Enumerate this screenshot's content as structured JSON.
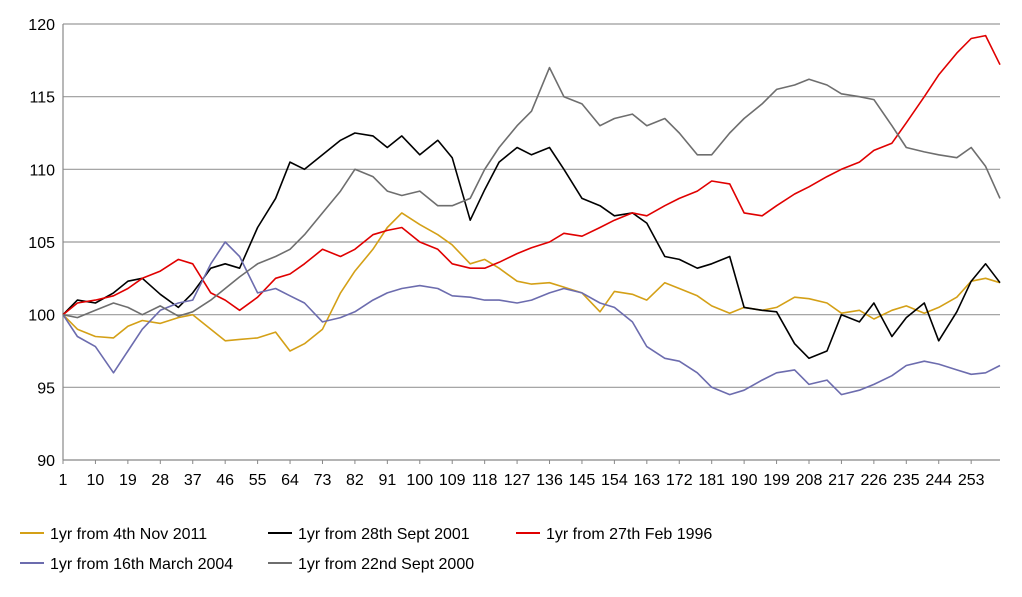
{
  "chart_data": {
    "type": "line",
    "title": "",
    "xlabel": "",
    "ylabel": "",
    "ylim": [
      90,
      120
    ],
    "xlim": [
      1,
      261
    ],
    "y_ticks": [
      "90",
      "95",
      "100",
      "105",
      "110",
      "115",
      "120"
    ],
    "x_ticks": [
      "1",
      "10",
      "19",
      "28",
      "37",
      "46",
      "55",
      "64",
      "73",
      "82",
      "91",
      "100",
      "109",
      "118",
      "127",
      "136",
      "145",
      "154",
      "163",
      "172",
      "181",
      "190",
      "199",
      "208",
      "217",
      "226",
      "235",
      "244",
      "253"
    ],
    "grid": "horizontal",
    "legend_position": "bottom",
    "series": [
      {
        "name": "1yr from 4th Nov 2011",
        "color": "#D4A017",
        "x": [
          1,
          5,
          10,
          15,
          19,
          23,
          28,
          33,
          37,
          42,
          46,
          50,
          55,
          60,
          64,
          68,
          73,
          78,
          82,
          87,
          91,
          95,
          100,
          105,
          109,
          114,
          118,
          122,
          127,
          131,
          136,
          140,
          145,
          150,
          154,
          159,
          163,
          168,
          172,
          177,
          181,
          186,
          190,
          195,
          199,
          204,
          208,
          213,
          217,
          222,
          226,
          231,
          235,
          240,
          244,
          249,
          253,
          257,
          261
        ],
        "y": [
          100,
          99,
          98.5,
          98.4,
          99.2,
          99.6,
          99.4,
          99.8,
          100,
          99,
          98.2,
          98.3,
          98.4,
          98.8,
          97.5,
          98,
          99,
          101.5,
          103,
          104.5,
          106,
          107,
          106.2,
          105.5,
          104.8,
          103.5,
          103.8,
          103.2,
          102.3,
          102.1,
          102.2,
          101.9,
          101.5,
          100.2,
          101.6,
          101.4,
          101,
          102.2,
          101.8,
          101.3,
          100.6,
          100.1,
          100.5,
          100.3,
          100.5,
          101.2,
          101.1,
          100.8,
          100.1,
          100.3,
          99.7,
          100.3,
          100.6,
          100.1,
          100.5,
          101.2,
          102.3,
          102.5,
          102.2
        ]
      },
      {
        "name": "1yr from 28th Sept 2001",
        "color": "#000000",
        "x": [
          1,
          5,
          10,
          15,
          19,
          23,
          28,
          33,
          37,
          42,
          46,
          50,
          55,
          60,
          64,
          68,
          73,
          78,
          82,
          87,
          91,
          95,
          100,
          105,
          109,
          114,
          118,
          122,
          127,
          131,
          136,
          140,
          145,
          150,
          154,
          159,
          163,
          168,
          172,
          177,
          181,
          186,
          190,
          195,
          199,
          204,
          208,
          213,
          217,
          222,
          226,
          231,
          235,
          240,
          244,
          249,
          253,
          257,
          261
        ],
        "y": [
          100,
          101,
          100.8,
          101.5,
          102.3,
          102.5,
          101.4,
          100.5,
          101.5,
          103.2,
          103.5,
          103.2,
          106,
          108,
          110.5,
          110,
          111,
          112,
          112.5,
          112.3,
          111.5,
          112.3,
          111,
          112,
          110.8,
          106.5,
          108.6,
          110.5,
          111.5,
          111,
          111.5,
          110,
          108,
          107.5,
          106.8,
          107,
          106.3,
          104,
          103.8,
          103.2,
          103.5,
          104,
          100.5,
          100.3,
          100.2,
          98,
          97,
          97.5,
          100,
          99.5,
          100.8,
          98.5,
          99.8,
          100.8,
          98.2,
          100.2,
          102.3,
          103.5,
          102.2
        ]
      },
      {
        "name": "1yr from 27th Feb 1996",
        "color": "#E00000",
        "x": [
          1,
          5,
          10,
          15,
          19,
          23,
          28,
          33,
          37,
          42,
          46,
          50,
          55,
          60,
          64,
          68,
          73,
          78,
          82,
          87,
          91,
          95,
          100,
          105,
          109,
          114,
          118,
          122,
          127,
          131,
          136,
          140,
          145,
          150,
          154,
          159,
          163,
          168,
          172,
          177,
          181,
          186,
          190,
          195,
          199,
          204,
          208,
          213,
          217,
          222,
          226,
          231,
          235,
          240,
          244,
          249,
          253,
          257,
          261
        ],
        "y": [
          100,
          100.8,
          101,
          101.3,
          101.8,
          102.5,
          103,
          103.8,
          103.5,
          101.5,
          101,
          100.3,
          101.2,
          102.5,
          102.8,
          103.5,
          104.5,
          104,
          104.5,
          105.5,
          105.8,
          106,
          105,
          104.5,
          103.5,
          103.2,
          103.2,
          103.6,
          104.2,
          104.6,
          105,
          105.6,
          105.4,
          106,
          106.5,
          107,
          106.8,
          107.5,
          108,
          108.5,
          109.2,
          109,
          107,
          106.8,
          107.5,
          108.3,
          108.8,
          109.5,
          110,
          110.5,
          111.3,
          111.8,
          113.2,
          115,
          116.5,
          118,
          119,
          119.2,
          117.2
        ]
      },
      {
        "name": "1yr from 16th March 2004",
        "color": "#6C6CAE",
        "x": [
          1,
          5,
          10,
          15,
          19,
          23,
          28,
          33,
          37,
          42,
          46,
          50,
          55,
          60,
          64,
          68,
          73,
          78,
          82,
          87,
          91,
          95,
          100,
          105,
          109,
          114,
          118,
          122,
          127,
          131,
          136,
          140,
          145,
          150,
          154,
          159,
          163,
          168,
          172,
          177,
          181,
          186,
          190,
          195,
          199,
          204,
          208,
          213,
          217,
          222,
          226,
          231,
          235,
          240,
          244,
          249,
          253,
          257,
          261
        ],
        "y": [
          100,
          98.5,
          97.8,
          96,
          97.5,
          99,
          100.3,
          100.8,
          101,
          103.5,
          105,
          104,
          101.5,
          101.8,
          101.3,
          100.8,
          99.5,
          99.8,
          100.2,
          101,
          101.5,
          101.8,
          102,
          101.8,
          101.3,
          101.2,
          101,
          101,
          100.8,
          101,
          101.5,
          101.8,
          101.5,
          100.8,
          100.5,
          99.5,
          97.8,
          97,
          96.8,
          96,
          95,
          94.5,
          94.8,
          95.5,
          96,
          96.2,
          95.2,
          95.5,
          94.5,
          94.8,
          95.2,
          95.8,
          96.5,
          96.8,
          96.6,
          96.2,
          95.9,
          96,
          96.5
        ]
      },
      {
        "name": "1yr from 22nd Sept 2000",
        "color": "#6E6E6E",
        "x": [
          1,
          5,
          10,
          15,
          19,
          23,
          28,
          33,
          37,
          42,
          46,
          50,
          55,
          60,
          64,
          68,
          73,
          78,
          82,
          87,
          91,
          95,
          100,
          105,
          109,
          114,
          118,
          122,
          127,
          131,
          136,
          140,
          145,
          150,
          154,
          159,
          163,
          168,
          172,
          177,
          181,
          186,
          190,
          195,
          199,
          204,
          208,
          213,
          217,
          222,
          226,
          231,
          235,
          240,
          244,
          249,
          253,
          257,
          261
        ],
        "y": [
          100,
          99.8,
          100.3,
          100.8,
          100.5,
          100,
          100.6,
          99.9,
          100.2,
          101,
          101.8,
          102.6,
          103.5,
          104,
          104.5,
          105.5,
          107,
          108.5,
          110,
          109.5,
          108.5,
          108.2,
          108.5,
          107.5,
          107.5,
          108,
          110,
          111.5,
          113,
          114,
          117,
          115,
          114.5,
          113,
          113.5,
          113.8,
          113,
          113.5,
          112.5,
          111,
          111,
          112.5,
          113.5,
          114.5,
          115.5,
          115.8,
          116.2,
          115.8,
          115.2,
          115,
          114.8,
          113,
          111.5,
          111.2,
          111,
          110.8,
          111.5,
          110.2,
          108
        ]
      }
    ]
  }
}
